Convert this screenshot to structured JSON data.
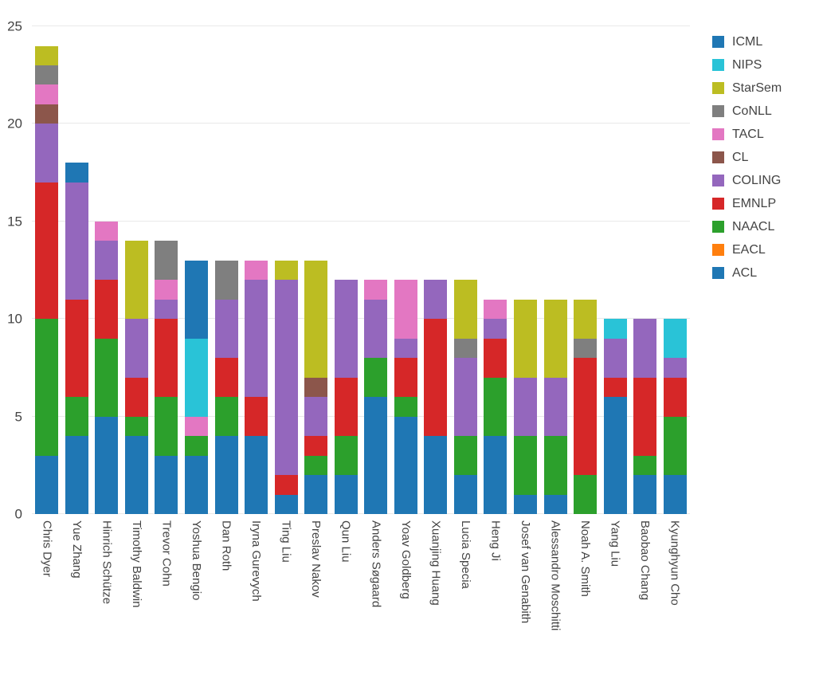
{
  "chart_data": {
    "type": "bar",
    "stacked": true,
    "orientation": "vertical",
    "title": "",
    "grid": true,
    "legend_position": "top-right",
    "ylim": [
      0,
      25
    ],
    "yticks": [
      0,
      5,
      10,
      15,
      20,
      25
    ],
    "axis": {
      "tick_color": "#444444",
      "grid_color": "#e9e9e9"
    },
    "categories": [
      "Chris Dyer",
      "Yue Zhang",
      "Hinrich Schütze",
      "Timothy Baldwin",
      "Trevor Cohn",
      "Yoshua Bengio",
      "Dan Roth",
      "Iryna Gurevych",
      "Ting Liu",
      "Preslav Nakov",
      "Qun Liu",
      "Anders Søgaard",
      "Yoav Goldberg",
      "Xuanjing Huang",
      "Lucia Specia",
      "Heng Ji",
      "Josef van Genabith",
      "Alessandro Moschitti",
      "Noah A. Smith",
      "Yang Liu",
      "Baobao Chang",
      "Kyunghyun Cho"
    ],
    "totals": [
      24,
      18,
      15,
      14,
      14,
      13,
      13,
      13,
      13,
      13,
      12,
      12,
      12,
      12,
      12,
      11,
      11,
      11,
      11,
      10,
      10,
      10
    ],
    "series": [
      {
        "name": "ICML",
        "color": "#1f77b4",
        "values": [
          0,
          1,
          0,
          0,
          0,
          4,
          0,
          0,
          0,
          0,
          0,
          0,
          0,
          0,
          0,
          0,
          0,
          0,
          0,
          0,
          0,
          0
        ]
      },
      {
        "name": "NIPS",
        "color": "#29c3d7",
        "values": [
          0,
          0,
          0,
          0,
          0,
          4,
          0,
          0,
          0,
          0,
          0,
          0,
          0,
          0,
          0,
          0,
          0,
          0,
          0,
          1,
          0,
          2
        ]
      },
      {
        "name": "StarSem",
        "color": "#bcbd22",
        "values": [
          1,
          0,
          0,
          4,
          0,
          0,
          0,
          0,
          1,
          6,
          0,
          0,
          0,
          0,
          3,
          0,
          4,
          4,
          2,
          0,
          0,
          0
        ]
      },
      {
        "name": "CoNLL",
        "color": "#7f7f7f",
        "values": [
          1,
          0,
          0,
          0,
          2,
          0,
          2,
          0,
          0,
          0,
          0,
          0,
          0,
          0,
          1,
          0,
          0,
          0,
          1,
          0,
          0,
          0
        ]
      },
      {
        "name": "TACL",
        "color": "#e377c2",
        "values": [
          1,
          0,
          1,
          0,
          1,
          1,
          0,
          1,
          0,
          0,
          0,
          1,
          3,
          0,
          0,
          1,
          0,
          0,
          0,
          0,
          0,
          0
        ]
      },
      {
        "name": "CL",
        "color": "#8c564b",
        "values": [
          1,
          0,
          0,
          0,
          0,
          0,
          0,
          0,
          0,
          1,
          0,
          0,
          0,
          0,
          0,
          0,
          0,
          0,
          0,
          0,
          0,
          0
        ]
      },
      {
        "name": "COLING",
        "color": "#9467bd",
        "values": [
          3,
          6,
          2,
          3,
          1,
          0,
          3,
          6,
          10,
          2,
          5,
          3,
          1,
          2,
          4,
          1,
          3,
          3,
          0,
          2,
          3,
          1
        ]
      },
      {
        "name": "EMNLP",
        "color": "#d62728",
        "values": [
          7,
          5,
          3,
          2,
          4,
          0,
          2,
          2,
          1,
          1,
          3,
          0,
          2,
          6,
          0,
          2,
          0,
          0,
          6,
          1,
          4,
          2
        ]
      },
      {
        "name": "NAACL",
        "color": "#2ca02c",
        "values": [
          7,
          2,
          4,
          1,
          3,
          1,
          2,
          0,
          0,
          1,
          2,
          2,
          1,
          0,
          2,
          3,
          3,
          3,
          2,
          0,
          1,
          3
        ]
      },
      {
        "name": "EACL",
        "color": "#ff7f0e",
        "values": [
          0,
          0,
          0,
          0,
          0,
          0,
          0,
          0,
          0,
          0,
          0,
          0,
          0,
          0,
          0,
          0,
          0,
          0,
          0,
          0,
          0,
          0
        ]
      },
      {
        "name": "ACL",
        "color": "#1f77b4",
        "values": [
          3,
          4,
          5,
          4,
          3,
          3,
          4,
          4,
          1,
          2,
          2,
          6,
          5,
          4,
          2,
          4,
          1,
          1,
          0,
          6,
          2,
          2
        ]
      }
    ]
  }
}
